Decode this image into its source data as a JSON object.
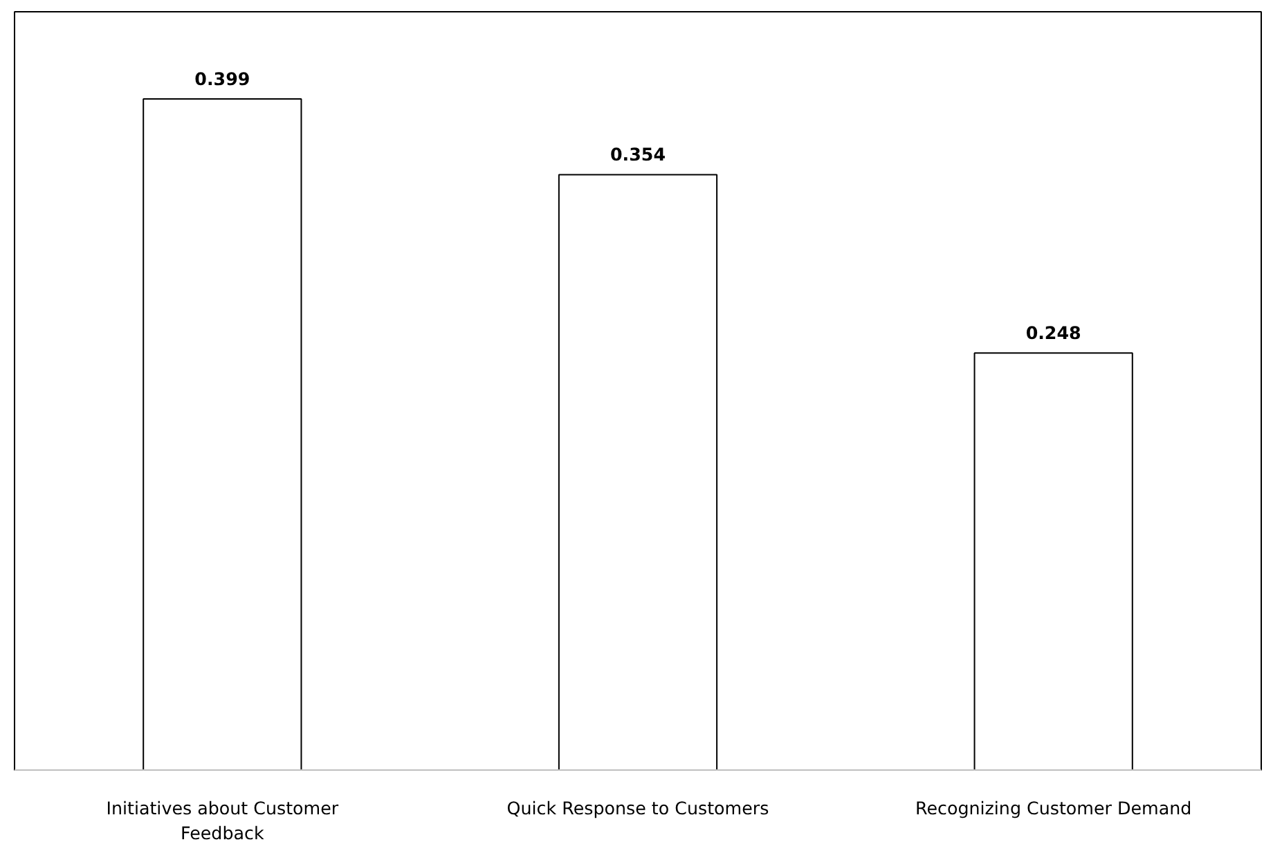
{
  "chart_data": {
    "type": "bar",
    "categories": [
      "Initiatives about Customer Feedback",
      "Quick Response to Customers",
      "Recognizing Customer Demand"
    ],
    "values": [
      0.399,
      0.354,
      0.248
    ],
    "color": "#ffffff",
    "data_labels": true
  }
}
